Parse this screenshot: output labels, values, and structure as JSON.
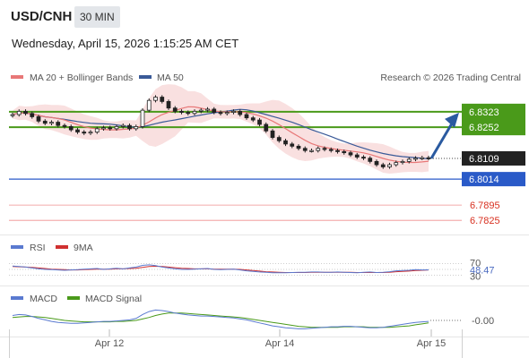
{
  "header": {
    "pair": "USD/CNH",
    "timeframe": "30 MIN",
    "datetime": "Wednesday, April 15, 2026 1:15:25 AM CET"
  },
  "legend": {
    "ma20": "MA 20 + Bollinger Bands",
    "ma50": "MA 50",
    "credit": "Research © 2026 Trading Central",
    "rsi": "RSI",
    "rsi_ma": "9MA",
    "macd": "MACD",
    "macd_signal": "MACD Signal"
  },
  "colors": {
    "ma20": "#e87878",
    "ma50": "#3a5a98",
    "bands": "#f7d6d6",
    "resistance": "#4a9a1a",
    "pivot": "#2a5ac8",
    "support": "#e86060",
    "candle_up": "#222222",
    "candle_down": "#222222",
    "arrow": "#2a5aa0",
    "current_tag": "#222222",
    "rsi": "#5a7ad0",
    "rsi_ma": "#d03030",
    "macd": "#5a7ad0",
    "macd_signal": "#4a9a1a"
  },
  "chart_data": {
    "type": "candlestick",
    "ylim": [
      6.776,
      6.8425
    ],
    "x_labels": [
      "Apr 12",
      "Apr 14",
      "Apr 15"
    ],
    "levels": [
      {
        "name": "resistance-2",
        "value": "6.8323",
        "kind": "resistance"
      },
      {
        "name": "resistance-1",
        "value": "6.8252",
        "kind": "resistance"
      },
      {
        "name": "current",
        "value": "6.8109",
        "kind": "current"
      },
      {
        "name": "pivot",
        "value": "6.8014",
        "kind": "pivot"
      },
      {
        "name": "support-1",
        "value": "6.7895",
        "kind": "support"
      },
      {
        "name": "support-2",
        "value": "6.7825",
        "kind": "support"
      }
    ],
    "closes": [
      6.831,
      6.8325,
      6.8315,
      6.83,
      6.828,
      6.827,
      6.8275,
      6.826,
      6.8255,
      6.824,
      6.823,
      6.8225,
      6.823,
      6.8245,
      6.825,
      6.8245,
      6.8255,
      6.826,
      6.8245,
      6.8255,
      6.833,
      6.8375,
      6.839,
      6.837,
      6.834,
      6.8325,
      6.832,
      6.8315,
      6.8325,
      6.833,
      6.8335,
      6.832,
      6.8315,
      6.832,
      6.8325,
      6.831,
      6.8295,
      6.8285,
      6.8265,
      6.8235,
      6.8205,
      6.819,
      6.8175,
      6.8165,
      6.8155,
      6.8145,
      6.8145,
      6.8155,
      6.815,
      6.8145,
      6.814,
      6.8135,
      6.8125,
      6.8115,
      6.811,
      6.8095,
      6.808,
      6.807,
      6.808,
      6.809,
      6.8095,
      6.8105,
      6.811,
      6.8112,
      6.8109
    ],
    "forecast_target": "6.8323",
    "rsi": {
      "scale": [
        30,
        70
      ],
      "tick_labels": [
        "70",
        "30"
      ],
      "value": "48.47",
      "values": [
        62,
        60,
        58,
        55,
        52,
        50,
        49,
        48,
        47,
        48,
        49,
        51,
        52,
        53,
        50,
        52,
        54,
        52,
        55,
        58,
        64,
        66,
        63,
        58,
        55,
        52,
        50,
        50,
        51,
        52,
        53,
        50,
        49,
        50,
        51,
        48,
        45,
        43,
        41,
        40,
        38,
        38,
        38,
        39,
        40,
        40,
        41,
        41,
        40,
        40,
        41,
        40,
        39,
        38,
        40,
        41,
        39,
        40,
        42,
        45,
        46,
        47,
        49,
        48,
        48.47
      ],
      "ma": [
        60,
        59,
        58,
        57,
        55,
        53,
        51,
        50,
        49,
        48,
        48,
        49,
        50,
        51,
        51,
        51,
        52,
        52,
        53,
        54,
        57,
        60,
        61,
        60,
        58,
        56,
        54,
        53,
        52,
        52,
        52,
        51,
        51,
        51,
        51,
        50,
        48,
        46,
        44,
        42,
        41,
        40,
        39,
        39,
        39,
        39,
        40,
        40,
        40,
        40,
        40,
        40,
        40,
        39,
        39,
        39,
        39,
        39,
        40,
        42,
        43,
        44,
        46,
        47,
        48
      ]
    },
    "macd": {
      "value": "-0.00",
      "values": [
        0.001,
        0.0012,
        0.0011,
        0.0008,
        0.0004,
        0.0001,
        -0.0002,
        -0.0004,
        -0.0005,
        -0.0006,
        -0.0006,
        -0.0005,
        -0.0004,
        -0.0003,
        -0.0002,
        -0.0002,
        -0.0001,
        0.0,
        0.0001,
        0.0004,
        0.0012,
        0.0018,
        0.0021,
        0.002,
        0.0018,
        0.0015,
        0.0013,
        0.0011,
        0.001,
        0.0009,
        0.0009,
        0.0008,
        0.0007,
        0.0006,
        0.0005,
        0.0003,
        0.0001,
        -0.0002,
        -0.0005,
        -0.0008,
        -0.0011,
        -0.0013,
        -0.0015,
        -0.0016,
        -0.0017,
        -0.0017,
        -0.0016,
        -0.0015,
        -0.0014,
        -0.0013,
        -0.0013,
        -0.0012,
        -0.0012,
        -0.0013,
        -0.0014,
        -0.0015,
        -0.0015,
        -0.0014,
        -0.0012,
        -0.001,
        -0.0008,
        -0.0006,
        -0.0004,
        -0.0003,
        -0.0002
      ],
      "signal": [
        0.0006,
        0.0007,
        0.0008,
        0.0008,
        0.0007,
        0.0006,
        0.0004,
        0.0002,
        0.0,
        -0.0001,
        -0.0002,
        -0.0003,
        -0.0003,
        -0.0003,
        -0.0003,
        -0.0003,
        -0.0002,
        -0.0002,
        -0.0001,
        0.0,
        0.0003,
        0.0006,
        0.001,
        0.0013,
        0.0015,
        0.0015,
        0.0015,
        0.0014,
        0.0013,
        0.0012,
        0.0011,
        0.001,
        0.0009,
        0.0008,
        0.0007,
        0.0006,
        0.0004,
        0.0002,
        0.0,
        -0.0002,
        -0.0004,
        -0.0006,
        -0.0008,
        -0.001,
        -0.0012,
        -0.0013,
        -0.0014,
        -0.0014,
        -0.0014,
        -0.0014,
        -0.0014,
        -0.0013,
        -0.0013,
        -0.0013,
        -0.0013,
        -0.0014,
        -0.0014,
        -0.0014,
        -0.0014,
        -0.0013,
        -0.0012,
        -0.0011,
        -0.0009,
        -0.0007,
        -0.0005
      ]
    }
  }
}
